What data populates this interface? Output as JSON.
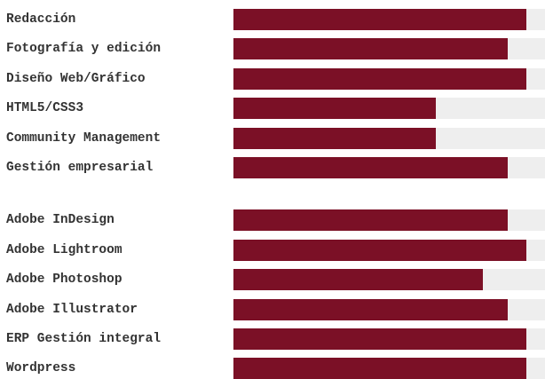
{
  "colors": {
    "bar_fill": "#7b1026",
    "bar_track": "#eeeeee",
    "label_text": "#333333"
  },
  "skill_groups": [
    {
      "items": [
        {
          "label": "Redacción",
          "level": 0.94
        },
        {
          "label": "Fotografía y edición",
          "level": 0.88
        },
        {
          "label": "Diseño Web/Gráfico",
          "level": 0.94
        },
        {
          "label": "HTML5/CSS3",
          "level": 0.65
        },
        {
          "label": "Community Management",
          "level": 0.65
        },
        {
          "label": "Gestión empresarial",
          "level": 0.88
        }
      ]
    },
    {
      "items": [
        {
          "label": "Adobe InDesign",
          "level": 0.88
        },
        {
          "label": "Adobe Lightroom",
          "level": 0.94
        },
        {
          "label": "Adobe Photoshop",
          "level": 0.8
        },
        {
          "label": "Adobe Illustrator",
          "level": 0.88
        },
        {
          "label": "ERP Gestión integral",
          "level": 0.94
        },
        {
          "label": "Wordpress",
          "level": 0.94
        }
      ]
    }
  ]
}
